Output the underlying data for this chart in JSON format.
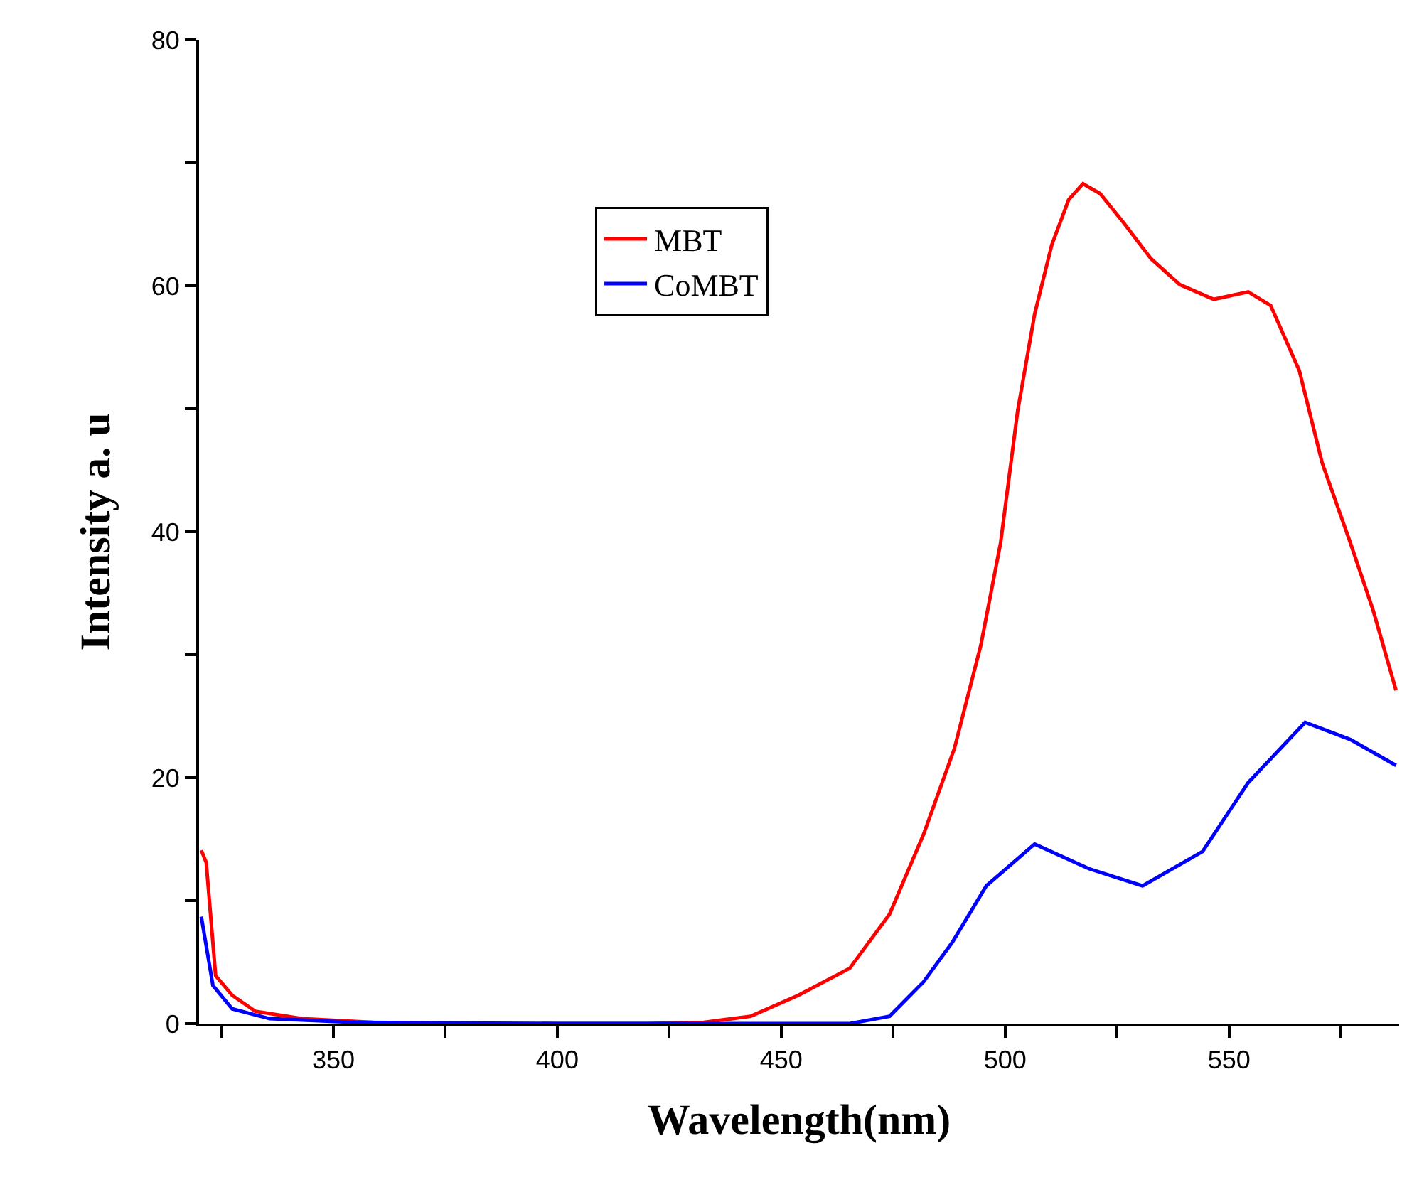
{
  "chart_data": {
    "type": "line",
    "xlabel": "Wavelength(nm)",
    "ylabel": "Intensity a. u",
    "xlim": [
      320,
      588
    ],
    "ylim": [
      0,
      80
    ],
    "xticks": [
      {
        "value": 325,
        "label": null
      },
      350,
      {
        "value": 375,
        "label": null
      },
      400,
      {
        "value": 425,
        "label": null
      },
      450,
      {
        "value": 475,
        "label": null
      },
      500,
      {
        "value": 525,
        "label": null
      },
      550,
      {
        "value": 575,
        "label": null
      }
    ],
    "yticks": [
      0,
      {
        "value": 10,
        "label": null
      },
      20,
      {
        "value": 30,
        "label": null
      },
      40,
      {
        "value": 50,
        "label": null
      },
      60,
      {
        "value": 70,
        "label": null
      },
      80
    ],
    "grid": false,
    "legend": "top left",
    "marker": "none",
    "line_style": "solid",
    "series": [
      {
        "name": "MBT",
        "color": "#ff0000",
        "x": [
          320.5,
          321.6,
          323.7,
          327.4,
          332.6,
          343,
          358.8,
          380,
          400,
          420,
          432.7,
          443.2,
          453.8,
          465.3,
          474.2,
          481.8,
          488.7,
          494.6,
          499,
          502.8,
          506.6,
          510.4,
          514.2,
          517.4,
          521.2,
          526.3,
          532.6,
          539,
          546.6,
          554.3,
          559.3,
          565.7,
          570.8,
          577.1,
          582.2,
          587.3
        ],
        "values": [
          14.1,
          13.1,
          3.9,
          2.3,
          1,
          0.4,
          0.1,
          0,
          0,
          0,
          0.1,
          0.6,
          2.3,
          4.5,
          8.9,
          15.4,
          22.4,
          30.8,
          39.1,
          49.8,
          57.7,
          63.3,
          67,
          68.3,
          67.5,
          65.2,
          62.2,
          60.1,
          58.9,
          59.5,
          58.4,
          53.1,
          45.6,
          39.1,
          33.6,
          27.1
        ]
      },
      {
        "name": "CoMBT",
        "color": "#0000ff",
        "x": [
          320.5,
          323.1,
          327.4,
          335.8,
          355,
          400,
          440,
          465.3,
          474.2,
          481.8,
          488.2,
          495.8,
          506.6,
          518.7,
          530.7,
          544.1,
          554.3,
          567,
          577.1,
          587.3
        ],
        "values": [
          8.7,
          3.1,
          1.2,
          0.4,
          0.1,
          0,
          0,
          0,
          0.6,
          3.4,
          6.6,
          11.2,
          14.6,
          12.6,
          11.2,
          14,
          19.6,
          24.5,
          23.1,
          21
        ]
      }
    ]
  }
}
